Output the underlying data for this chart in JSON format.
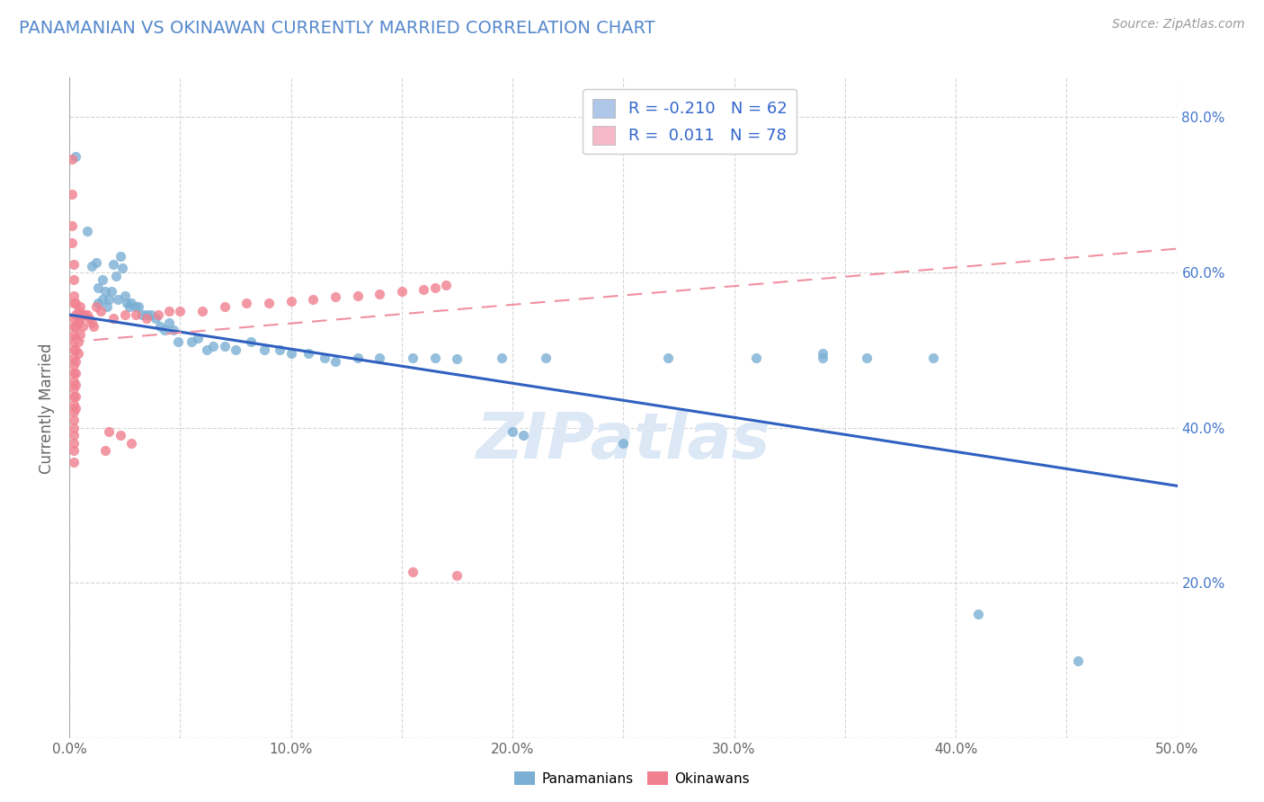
{
  "title": "PANAMANIAN VS OKINAWAN CURRENTLY MARRIED CORRELATION CHART",
  "source_text": "Source: ZipAtlas.com",
  "ylabel": "Currently Married",
  "xlim": [
    0.0,
    0.5
  ],
  "ylim": [
    0.0,
    0.85
  ],
  "xtick_vals": [
    0.0,
    0.05,
    0.1,
    0.15,
    0.2,
    0.25,
    0.3,
    0.35,
    0.4,
    0.45,
    0.5
  ],
  "xtick_labels": [
    "0.0%",
    "",
    "10.0%",
    "",
    "20.0%",
    "",
    "30.0%",
    "",
    "40.0%",
    "",
    "50.0%"
  ],
  "ytick_vals": [
    0.0,
    0.2,
    0.4,
    0.6,
    0.8
  ],
  "right_ytick_vals": [
    0.2,
    0.4,
    0.6,
    0.8
  ],
  "right_ytick_labels": [
    "20.0%",
    "40.0%",
    "60.0%",
    "80.0%"
  ],
  "panamanian_color": "#7bafd4",
  "okinawan_color": "#f08090",
  "panamanian_line_color": "#3060c0",
  "okinawan_line_color": "#f090a0",
  "watermark": "ZIPatlas",
  "watermark_color": "#dce8f5",
  "legend_blue_color": "#aec6e8",
  "legend_pink_color": "#f4b8c8",
  "legend_text_color": "#3366cc",
  "panamanian_scatter": [
    [
      0.003,
      0.749
    ],
    [
      0.008,
      0.653
    ],
    [
      0.01,
      0.608
    ],
    [
      0.012,
      0.612
    ],
    [
      0.013,
      0.58
    ],
    [
      0.013,
      0.56
    ],
    [
      0.015,
      0.565
    ],
    [
      0.015,
      0.59
    ],
    [
      0.016,
      0.575
    ],
    [
      0.017,
      0.555
    ],
    [
      0.018,
      0.565
    ],
    [
      0.019,
      0.575
    ],
    [
      0.02,
      0.61
    ],
    [
      0.021,
      0.595
    ],
    [
      0.022,
      0.565
    ],
    [
      0.023,
      0.62
    ],
    [
      0.024,
      0.605
    ],
    [
      0.025,
      0.57
    ],
    [
      0.026,
      0.56
    ],
    [
      0.027,
      0.555
    ],
    [
      0.028,
      0.56
    ],
    [
      0.03,
      0.555
    ],
    [
      0.031,
      0.555
    ],
    [
      0.033,
      0.545
    ],
    [
      0.035,
      0.545
    ],
    [
      0.037,
      0.545
    ],
    [
      0.039,
      0.54
    ],
    [
      0.041,
      0.53
    ],
    [
      0.043,
      0.525
    ],
    [
      0.045,
      0.535
    ],
    [
      0.047,
      0.525
    ],
    [
      0.049,
      0.51
    ],
    [
      0.055,
      0.51
    ],
    [
      0.058,
      0.515
    ],
    [
      0.062,
      0.5
    ],
    [
      0.065,
      0.505
    ],
    [
      0.07,
      0.505
    ],
    [
      0.075,
      0.5
    ],
    [
      0.082,
      0.51
    ],
    [
      0.088,
      0.5
    ],
    [
      0.095,
      0.5
    ],
    [
      0.1,
      0.495
    ],
    [
      0.108,
      0.495
    ],
    [
      0.115,
      0.49
    ],
    [
      0.12,
      0.485
    ],
    [
      0.13,
      0.49
    ],
    [
      0.14,
      0.49
    ],
    [
      0.155,
      0.49
    ],
    [
      0.165,
      0.49
    ],
    [
      0.175,
      0.488
    ],
    [
      0.195,
      0.49
    ],
    [
      0.205,
      0.39
    ],
    [
      0.215,
      0.49
    ],
    [
      0.25,
      0.38
    ],
    [
      0.27,
      0.49
    ],
    [
      0.31,
      0.49
    ],
    [
      0.34,
      0.49
    ],
    [
      0.36,
      0.49
    ],
    [
      0.39,
      0.49
    ],
    [
      0.41,
      0.16
    ],
    [
      0.455,
      0.1
    ],
    [
      0.2,
      0.395
    ],
    [
      0.34,
      0.495
    ]
  ],
  "okinawan_scatter": [
    [
      0.001,
      0.745
    ],
    [
      0.001,
      0.7
    ],
    [
      0.001,
      0.66
    ],
    [
      0.001,
      0.638
    ],
    [
      0.002,
      0.61
    ],
    [
      0.002,
      0.59
    ],
    [
      0.002,
      0.57
    ],
    [
      0.002,
      0.56
    ],
    [
      0.002,
      0.54
    ],
    [
      0.002,
      0.53
    ],
    [
      0.002,
      0.52
    ],
    [
      0.002,
      0.51
    ],
    [
      0.002,
      0.5
    ],
    [
      0.002,
      0.49
    ],
    [
      0.002,
      0.48
    ],
    [
      0.002,
      0.47
    ],
    [
      0.002,
      0.46
    ],
    [
      0.002,
      0.45
    ],
    [
      0.002,
      0.44
    ],
    [
      0.002,
      0.43
    ],
    [
      0.002,
      0.42
    ],
    [
      0.002,
      0.41
    ],
    [
      0.002,
      0.4
    ],
    [
      0.002,
      0.39
    ],
    [
      0.002,
      0.38
    ],
    [
      0.002,
      0.37
    ],
    [
      0.002,
      0.355
    ],
    [
      0.003,
      0.56
    ],
    [
      0.003,
      0.545
    ],
    [
      0.003,
      0.53
    ],
    [
      0.003,
      0.515
    ],
    [
      0.003,
      0.5
    ],
    [
      0.003,
      0.485
    ],
    [
      0.003,
      0.47
    ],
    [
      0.003,
      0.455
    ],
    [
      0.003,
      0.44
    ],
    [
      0.003,
      0.425
    ],
    [
      0.004,
      0.55
    ],
    [
      0.004,
      0.535
    ],
    [
      0.004,
      0.51
    ],
    [
      0.004,
      0.495
    ],
    [
      0.005,
      0.555
    ],
    [
      0.005,
      0.54
    ],
    [
      0.005,
      0.52
    ],
    [
      0.006,
      0.545
    ],
    [
      0.006,
      0.53
    ],
    [
      0.007,
      0.545
    ],
    [
      0.008,
      0.545
    ],
    [
      0.009,
      0.54
    ],
    [
      0.01,
      0.535
    ],
    [
      0.011,
      0.53
    ],
    [
      0.012,
      0.555
    ],
    [
      0.014,
      0.55
    ],
    [
      0.016,
      0.37
    ],
    [
      0.018,
      0.395
    ],
    [
      0.02,
      0.54
    ],
    [
      0.023,
      0.39
    ],
    [
      0.025,
      0.545
    ],
    [
      0.028,
      0.38
    ],
    [
      0.03,
      0.545
    ],
    [
      0.035,
      0.54
    ],
    [
      0.04,
      0.545
    ],
    [
      0.045,
      0.55
    ],
    [
      0.05,
      0.55
    ],
    [
      0.06,
      0.55
    ],
    [
      0.07,
      0.555
    ],
    [
      0.08,
      0.56
    ],
    [
      0.09,
      0.56
    ],
    [
      0.1,
      0.562
    ],
    [
      0.11,
      0.565
    ],
    [
      0.12,
      0.568
    ],
    [
      0.13,
      0.57
    ],
    [
      0.14,
      0.572
    ],
    [
      0.15,
      0.575
    ],
    [
      0.155,
      0.215
    ],
    [
      0.16,
      0.578
    ],
    [
      0.165,
      0.58
    ],
    [
      0.17,
      0.583
    ],
    [
      0.175,
      0.21
    ]
  ],
  "pan_line": {
    "x": [
      0.0,
      0.5
    ],
    "y": [
      0.545,
      0.325
    ]
  },
  "oki_line": {
    "x": [
      0.0,
      0.5
    ],
    "y": [
      0.51,
      0.63
    ]
  }
}
